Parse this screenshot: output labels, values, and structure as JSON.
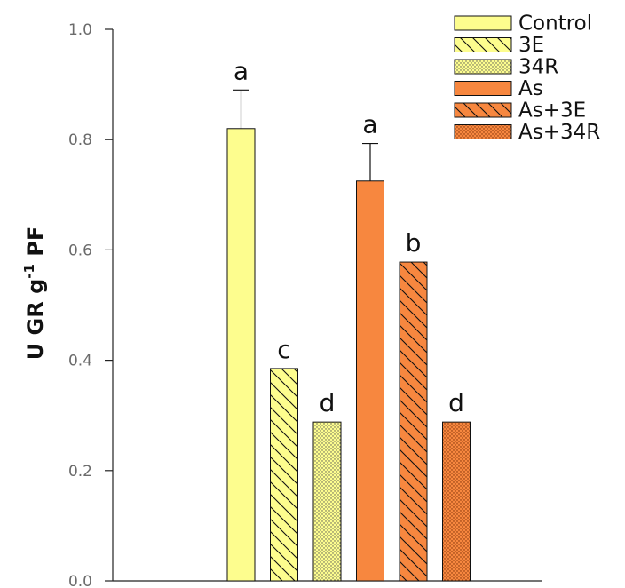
{
  "chart_data": {
    "type": "bar",
    "categories": [
      "Control",
      "3E",
      "34R",
      "As",
      "As+3E",
      "As+34R"
    ],
    "values": [
      0.82,
      0.385,
      0.288,
      0.725,
      0.578,
      0.288
    ],
    "errors": [
      0.07,
      null,
      null,
      0.068,
      null,
      null
    ],
    "significance": [
      "a",
      "c",
      "d",
      "a",
      "b",
      "d"
    ],
    "title": "",
    "xlabel": "",
    "ylabel": "U GR g-1 PF",
    "ylabel_parts": {
      "before": "U GR g",
      "sup": "-1",
      "after": " PF"
    },
    "ylim": [
      0,
      1.0
    ],
    "yticks": [
      "0.0",
      "0.2",
      "0.4",
      "0.6",
      "0.8",
      "1.0"
    ],
    "legend": {
      "position": "top-right",
      "entries": [
        "Control",
        "3E",
        "34R",
        "As",
        "As+3E",
        "As+34R"
      ]
    },
    "series_styles": [
      {
        "fill": "#fdfd8e",
        "pattern": "none"
      },
      {
        "fill": "#fdfd8e",
        "pattern": "diagonal"
      },
      {
        "fill": "#fdfd8e",
        "pattern": "dots"
      },
      {
        "fill": "#f7873f",
        "pattern": "none"
      },
      {
        "fill": "#f7873f",
        "pattern": "diagonal"
      },
      {
        "fill": "#f7873f",
        "pattern": "dots"
      }
    ],
    "grid": false
  }
}
